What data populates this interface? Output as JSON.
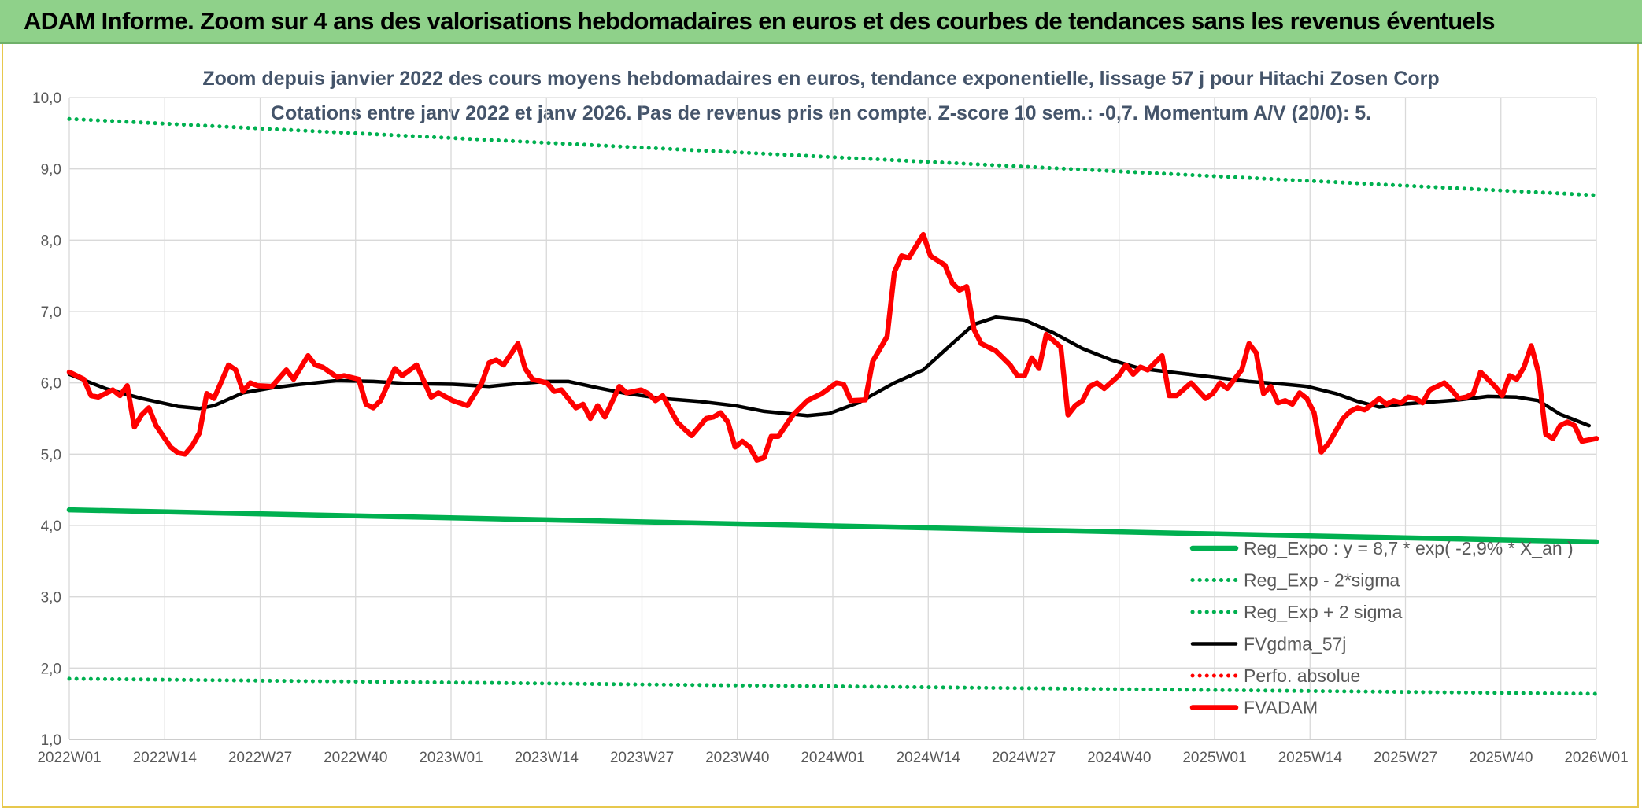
{
  "header": {
    "title": "ADAM Informe. Zoom sur 4 ans des valorisations hebdomadaires en euros et des courbes de tendances sans les revenus éventuels",
    "background": "#8fd18a",
    "frame_color": "#e7c84d"
  },
  "chart_data": {
    "type": "line",
    "title": "Zoom depuis janvier 2022 des cours moyens hebdomadaires en euros, tendance exponentielle, lissage 57 j pour Hitachi Zosen Corp",
    "subtitle": "Cotations entre janv 2022 et janv 2026. Pas de revenus pris en compte. Z-score 10 sem.: -0,7. Momentum A/V (20/0): 5.",
    "xlabel": "",
    "ylabel": "",
    "ylim": [
      1.0,
      10.0
    ],
    "yticks": [
      "1,0",
      "2,0",
      "3,0",
      "4,0",
      "5,0",
      "6,0",
      "7,0",
      "8,0",
      "9,0",
      "10,0"
    ],
    "xticks": [
      "2022W01",
      "2022W14",
      "2022W27",
      "2022W40",
      "2023W01",
      "2023W14",
      "2023W27",
      "2023W40",
      "2024W01",
      "2024W14",
      "2024W27",
      "2024W40",
      "2025W01",
      "2025W14",
      "2025W27",
      "2025W40",
      "2026W01"
    ],
    "x_range_weeks": [
      0,
      211
    ],
    "grid": true,
    "legend_position": "bottom-right",
    "series": [
      {
        "name": "Reg_Expo : y = 8,7 * exp( -2,9% *  X_an )",
        "color": "#00b050",
        "style": "solid-thick",
        "points": [
          [
            0,
            4.22
          ],
          [
            211,
            3.77
          ]
        ]
      },
      {
        "name": "Reg_Exp - 2*sigma",
        "color": "#00b050",
        "style": "dotted",
        "points": [
          [
            0,
            1.85
          ],
          [
            211,
            1.64
          ]
        ]
      },
      {
        "name": "Reg_Exp + 2 sigma",
        "color": "#00b050",
        "style": "dotted",
        "points": [
          [
            0,
            9.7
          ],
          [
            211,
            8.63
          ]
        ]
      },
      {
        "name": "FVgdma_57j",
        "color": "#000000",
        "style": "solid",
        "points": [
          [
            0,
            6.12
          ],
          [
            5,
            5.92
          ],
          [
            10,
            5.78
          ],
          [
            15,
            5.67
          ],
          [
            18,
            5.64
          ],
          [
            20,
            5.68
          ],
          [
            24,
            5.86
          ],
          [
            28,
            5.93
          ],
          [
            32,
            5.98
          ],
          [
            37,
            6.03
          ],
          [
            42,
            6.02
          ],
          [
            47,
            5.99
          ],
          [
            53,
            5.98
          ],
          [
            58,
            5.95
          ],
          [
            62,
            5.99
          ],
          [
            66,
            6.02
          ],
          [
            69,
            6.02
          ],
          [
            73,
            5.93
          ],
          [
            77,
            5.85
          ],
          [
            82,
            5.78
          ],
          [
            87,
            5.74
          ],
          [
            92,
            5.68
          ],
          [
            96,
            5.6
          ],
          [
            102,
            5.54
          ],
          [
            105,
            5.57
          ],
          [
            109,
            5.72
          ],
          [
            114,
            6.0
          ],
          [
            118,
            6.18
          ],
          [
            122,
            6.55
          ],
          [
            125,
            6.82
          ],
          [
            128,
            6.92
          ],
          [
            132,
            6.88
          ],
          [
            136,
            6.7
          ],
          [
            140,
            6.48
          ],
          [
            144,
            6.32
          ],
          [
            148,
            6.2
          ],
          [
            153,
            6.14
          ],
          [
            158,
            6.08
          ],
          [
            163,
            6.02
          ],
          [
            168,
            5.98
          ],
          [
            171,
            5.95
          ],
          [
            175,
            5.85
          ],
          [
            178,
            5.74
          ],
          [
            181,
            5.66
          ],
          [
            184,
            5.7
          ],
          [
            188,
            5.73
          ],
          [
            192,
            5.76
          ],
          [
            196,
            5.81
          ],
          [
            200,
            5.8
          ],
          [
            203,
            5.75
          ],
          [
            206,
            5.56
          ],
          [
            210,
            5.4
          ]
        ]
      },
      {
        "name": "Perfo. absolue",
        "color": "#ff0000",
        "style": "dotted",
        "points": []
      },
      {
        "name": "FVADAM",
        "color": "#ff0000",
        "style": "solid-thick",
        "points": [
          [
            0,
            6.15
          ],
          [
            2,
            6.05
          ],
          [
            3,
            5.82
          ],
          [
            4,
            5.8
          ],
          [
            6,
            5.9
          ],
          [
            7,
            5.82
          ],
          [
            8,
            5.96
          ],
          [
            9,
            5.38
          ],
          [
            10,
            5.55
          ],
          [
            11,
            5.65
          ],
          [
            12,
            5.4
          ],
          [
            14,
            5.1
          ],
          [
            15,
            5.02
          ],
          [
            16,
            5.0
          ],
          [
            17,
            5.12
          ],
          [
            18,
            5.3
          ],
          [
            19,
            5.85
          ],
          [
            20,
            5.78
          ],
          [
            22,
            6.25
          ],
          [
            23,
            6.18
          ],
          [
            24,
            5.88
          ],
          [
            25,
            6.0
          ],
          [
            26,
            5.96
          ],
          [
            28,
            5.95
          ],
          [
            30,
            6.18
          ],
          [
            31,
            6.05
          ],
          [
            33,
            6.38
          ],
          [
            34,
            6.25
          ],
          [
            35,
            6.22
          ],
          [
            37,
            6.08
          ],
          [
            38,
            6.1
          ],
          [
            40,
            6.05
          ],
          [
            41,
            5.7
          ],
          [
            42,
            5.65
          ],
          [
            43,
            5.75
          ],
          [
            45,
            6.2
          ],
          [
            46,
            6.1
          ],
          [
            48,
            6.25
          ],
          [
            50,
            5.8
          ],
          [
            51,
            5.86
          ],
          [
            53,
            5.75
          ],
          [
            55,
            5.68
          ],
          [
            57,
            6.0
          ],
          [
            58,
            6.28
          ],
          [
            59,
            6.32
          ],
          [
            60,
            6.25
          ],
          [
            62,
            6.55
          ],
          [
            63,
            6.2
          ],
          [
            64,
            6.05
          ],
          [
            66,
            6.0
          ],
          [
            67,
            5.88
          ],
          [
            68,
            5.9
          ],
          [
            70,
            5.65
          ],
          [
            71,
            5.7
          ],
          [
            72,
            5.5
          ],
          [
            73,
            5.68
          ],
          [
            74,
            5.52
          ],
          [
            76,
            5.95
          ],
          [
            77,
            5.86
          ],
          [
            79,
            5.9
          ],
          [
            80,
            5.85
          ],
          [
            81,
            5.75
          ],
          [
            82,
            5.82
          ],
          [
            84,
            5.45
          ],
          [
            85,
            5.35
          ],
          [
            86,
            5.26
          ],
          [
            88,
            5.5
          ],
          [
            89,
            5.52
          ],
          [
            90,
            5.58
          ],
          [
            91,
            5.45
          ],
          [
            92,
            5.1
          ],
          [
            93,
            5.18
          ],
          [
            94,
            5.1
          ],
          [
            95,
            4.92
          ],
          [
            96,
            4.95
          ],
          [
            97,
            5.25
          ],
          [
            98,
            5.25
          ],
          [
            100,
            5.55
          ],
          [
            102,
            5.75
          ],
          [
            104,
            5.85
          ],
          [
            106,
            6.0
          ],
          [
            107,
            5.98
          ],
          [
            108,
            5.75
          ],
          [
            110,
            5.76
          ],
          [
            111,
            6.3
          ],
          [
            113,
            6.65
          ],
          [
            114,
            7.55
          ],
          [
            115,
            7.78
          ],
          [
            116,
            7.75
          ],
          [
            118,
            8.08
          ],
          [
            119,
            7.78
          ],
          [
            121,
            7.65
          ],
          [
            122,
            7.4
          ],
          [
            123,
            7.3
          ],
          [
            124,
            7.35
          ],
          [
            125,
            6.75
          ],
          [
            126,
            6.55
          ],
          [
            128,
            6.45
          ],
          [
            130,
            6.25
          ],
          [
            131,
            6.1
          ],
          [
            132,
            6.1
          ],
          [
            133,
            6.35
          ],
          [
            134,
            6.2
          ],
          [
            135,
            6.68
          ],
          [
            137,
            6.5
          ],
          [
            138,
            5.55
          ],
          [
            139,
            5.68
          ],
          [
            140,
            5.75
          ],
          [
            141,
            5.95
          ],
          [
            142,
            6.0
          ],
          [
            143,
            5.92
          ],
          [
            145,
            6.1
          ],
          [
            146,
            6.25
          ],
          [
            147,
            6.12
          ],
          [
            148,
            6.22
          ],
          [
            149,
            6.18
          ],
          [
            151,
            6.38
          ],
          [
            152,
            5.82
          ],
          [
            153,
            5.82
          ],
          [
            155,
            6.0
          ],
          [
            157,
            5.78
          ],
          [
            158,
            5.85
          ],
          [
            159,
            6.0
          ],
          [
            160,
            5.92
          ],
          [
            162,
            6.18
          ],
          [
            163,
            6.55
          ],
          [
            164,
            6.42
          ],
          [
            165,
            5.85
          ],
          [
            166,
            5.95
          ],
          [
            167,
            5.72
          ],
          [
            168,
            5.75
          ],
          [
            169,
            5.7
          ],
          [
            170,
            5.86
          ],
          [
            171,
            5.78
          ],
          [
            172,
            5.58
          ],
          [
            173,
            5.03
          ],
          [
            174,
            5.15
          ],
          [
            176,
            5.5
          ],
          [
            177,
            5.6
          ],
          [
            178,
            5.65
          ],
          [
            179,
            5.62
          ],
          [
            180,
            5.7
          ],
          [
            181,
            5.78
          ],
          [
            182,
            5.7
          ],
          [
            183,
            5.75
          ],
          [
            184,
            5.72
          ],
          [
            185,
            5.8
          ],
          [
            186,
            5.78
          ],
          [
            187,
            5.72
          ],
          [
            188,
            5.9
          ],
          [
            190,
            6.0
          ],
          [
            191,
            5.9
          ],
          [
            192,
            5.78
          ],
          [
            193,
            5.8
          ],
          [
            194,
            5.85
          ],
          [
            195,
            6.15
          ],
          [
            196,
            6.05
          ],
          [
            197,
            5.95
          ],
          [
            198,
            5.82
          ],
          [
            199,
            6.1
          ],
          [
            200,
            6.05
          ],
          [
            201,
            6.22
          ],
          [
            202,
            6.52
          ],
          [
            203,
            6.15
          ],
          [
            204,
            5.28
          ],
          [
            205,
            5.22
          ],
          [
            206,
            5.4
          ],
          [
            207,
            5.45
          ],
          [
            208,
            5.4
          ],
          [
            209,
            5.18
          ],
          [
            210,
            5.2
          ],
          [
            211,
            5.22
          ]
        ]
      }
    ]
  }
}
